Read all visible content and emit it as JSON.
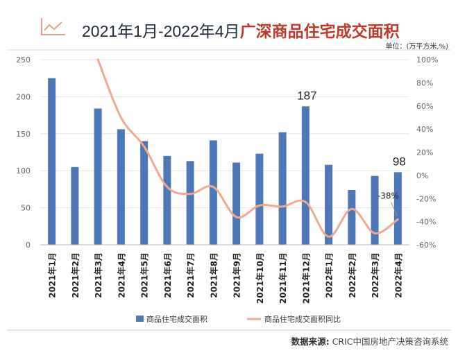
{
  "title": {
    "prefix": "2021年1月-2022年4月",
    "highlight": "广深商品住宅成交面积"
  },
  "unit": "单位：(万平方米,%)",
  "source": {
    "label": "数据来源:",
    "text": "CRIC中国房地产决策咨询系统"
  },
  "colors": {
    "bar": "#4d78b8",
    "line": "#f0a98c",
    "title_accent": "#c0392b",
    "grid": "#e6e6e6"
  },
  "chart_data": {
    "type": "bar+line",
    "categories": [
      "2021年1月",
      "2021年2月",
      "2021年3月",
      "2021年4月",
      "2021年5月",
      "2021年6月",
      "2021年7月",
      "2021年8月",
      "2021年9月",
      "2021年10月",
      "2021年11月",
      "2021年12月",
      "2022年1月",
      "2022年2月",
      "2022年3月",
      "2022年4月"
    ],
    "series": [
      {
        "name": "商品住宅成交面积",
        "kind": "bar",
        "axis": "left",
        "values": [
          225,
          105,
          184,
          156,
          140,
          120,
          113,
          141,
          111,
          123,
          152,
          187,
          108,
          74,
          93,
          98
        ]
      },
      {
        "name": "商品住宅成交面积同比",
        "kind": "line",
        "axis": "right",
        "values": [
          null,
          null,
          100,
          50,
          25,
          -10,
          -16,
          -10,
          -36,
          -26,
          -27,
          -23,
          -53,
          -29,
          -50,
          -38
        ]
      }
    ],
    "left_axis": {
      "min": 0,
      "max": 250,
      "ticks": [
        "0",
        "50",
        "100",
        "150",
        "200",
        "250"
      ]
    },
    "right_axis": {
      "min": -60,
      "max": 100,
      "ticks": [
        "-60%",
        "-40%",
        "-20%",
        "0%",
        "20%",
        "40%",
        "60%",
        "80%",
        "100%"
      ]
    },
    "annotations": [
      {
        "label": "187",
        "index": 11,
        "series": 0
      },
      {
        "label": "98",
        "index": 15,
        "series": 0
      },
      {
        "label": "-38%",
        "index": 15,
        "series": 1
      }
    ],
    "legend": [
      "商品住宅成交面积",
      "商品住宅成交面积同比"
    ],
    "legend_position": "bottom"
  }
}
